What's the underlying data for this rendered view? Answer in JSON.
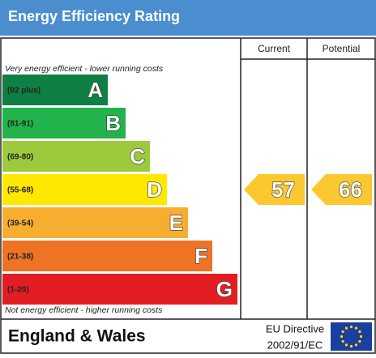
{
  "header": {
    "title": "Energy Efficiency Rating"
  },
  "columns": {
    "current": "Current",
    "potential": "Potential"
  },
  "top_note": "Very energy efficient - lower running costs",
  "bottom_note": "Not energy efficient - higher running costs",
  "bands": [
    {
      "range": "(92 plus)",
      "letter": "A",
      "color": "#0f8043"
    },
    {
      "range": "(81-91)",
      "letter": "B",
      "color": "#22b34c"
    },
    {
      "range": "(69-80)",
      "letter": "C",
      "color": "#9cca3c"
    },
    {
      "range": "(55-68)",
      "letter": "D",
      "color": "#fee800"
    },
    {
      "range": "(39-54)",
      "letter": "E",
      "color": "#f7ae30"
    },
    {
      "range": "(21-38)",
      "letter": "F",
      "color": "#ee7325"
    },
    {
      "range": "(1-20)",
      "letter": "G",
      "color": "#e31d24"
    }
  ],
  "current": {
    "value": 57,
    "band": "D",
    "color": "#fcc830"
  },
  "potential": {
    "value": 66,
    "band": "D",
    "color": "#fcc830"
  },
  "footer": {
    "region": "England & Wales",
    "directive_line1": "EU Directive",
    "directive_line2": "2002/91/EC"
  }
}
